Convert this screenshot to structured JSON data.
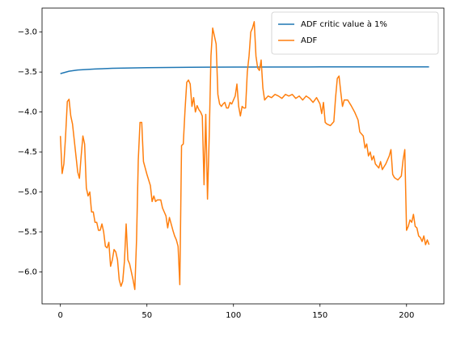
{
  "chart_data": {
    "type": "line",
    "xlim": [
      -10.6,
      221.6
    ],
    "ylim": [
      -6.4,
      -2.7
    ],
    "xticks": [
      0,
      50,
      100,
      150,
      200
    ],
    "yticks": [
      {
        "value": -3.0,
        "label": "−3.0"
      },
      {
        "value": -3.5,
        "label": "−3.5"
      },
      {
        "value": -4.0,
        "label": "−4.0"
      },
      {
        "value": -4.5,
        "label": "−4.5"
      },
      {
        "value": -5.0,
        "label": "−5.0"
      },
      {
        "value": -5.5,
        "label": "−5.5"
      },
      {
        "value": -6.0,
        "label": "−6.0"
      }
    ],
    "legend": "upper right",
    "series": [
      {
        "name": "ADF critic value à 1%",
        "color": "#1f77b4",
        "x": [
          0,
          5,
          10,
          20,
          30,
          50,
          75,
          100,
          150,
          213
        ],
        "values": [
          -3.52,
          -3.49,
          -3.475,
          -3.462,
          -3.453,
          -3.445,
          -3.44,
          -3.438,
          -3.436,
          -3.435
        ]
      },
      {
        "name": "ADF",
        "color": "#ff7f0e",
        "x": [
          0,
          1,
          2,
          3,
          4,
          5,
          6,
          7,
          8,
          9,
          10,
          11,
          12,
          13,
          14,
          15,
          16,
          17,
          18,
          19,
          20,
          21,
          22,
          23,
          24,
          25,
          26,
          27,
          28,
          29,
          30,
          31,
          32,
          33,
          34,
          35,
          36,
          37,
          38,
          39,
          40,
          41,
          42,
          43,
          44,
          45,
          46,
          47,
          48,
          49,
          50,
          51,
          52,
          53,
          54,
          55,
          56,
          57,
          58,
          59,
          60,
          61,
          62,
          63,
          64,
          65,
          66,
          67,
          68,
          69,
          70,
          71,
          72,
          73,
          74,
          75,
          76,
          77,
          78,
          79,
          80,
          81,
          82,
          83,
          84,
          85,
          86,
          87,
          88,
          89,
          90,
          91,
          92,
          93,
          94,
          95,
          96,
          97,
          98,
          99,
          100,
          101,
          102,
          103,
          104,
          105,
          106,
          107,
          108,
          109,
          110,
          111,
          112,
          113,
          114,
          115,
          116,
          117,
          118,
          120,
          122,
          124,
          126,
          128,
          130,
          132,
          134,
          136,
          138,
          140,
          142,
          144,
          146,
          148,
          150,
          151,
          152,
          153,
          154,
          156,
          158,
          159,
          160,
          161,
          162,
          163,
          164,
          166,
          168,
          170,
          172,
          173,
          175,
          176,
          177,
          178,
          179,
          180,
          181,
          182,
          184,
          185,
          186,
          188,
          190,
          191,
          192,
          193,
          195,
          197,
          198,
          199,
          200,
          201,
          202,
          203,
          204,
          205,
          206,
          207,
          208,
          209,
          210,
          211,
          212,
          213
        ],
        "values": [
          -4.3,
          -4.77,
          -4.65,
          -4.3,
          -3.87,
          -3.84,
          -4.05,
          -4.15,
          -4.35,
          -4.55,
          -4.75,
          -4.83,
          -4.55,
          -4.3,
          -4.4,
          -4.95,
          -5.05,
          -5.0,
          -5.25,
          -5.25,
          -5.38,
          -5.38,
          -5.48,
          -5.48,
          -5.4,
          -5.5,
          -5.68,
          -5.7,
          -5.63,
          -5.93,
          -5.85,
          -5.72,
          -5.75,
          -5.85,
          -6.1,
          -6.18,
          -6.12,
          -5.87,
          -5.4,
          -5.85,
          -5.9,
          -6.0,
          -6.1,
          -6.22,
          -5.6,
          -4.6,
          -4.13,
          -4.13,
          -4.62,
          -4.7,
          -4.78,
          -4.85,
          -4.92,
          -5.12,
          -5.05,
          -5.12,
          -5.1,
          -5.1,
          -5.1,
          -5.2,
          -5.25,
          -5.3,
          -5.45,
          -5.32,
          -5.4,
          -5.48,
          -5.55,
          -5.6,
          -5.68,
          -6.16,
          -4.42,
          -4.4,
          -3.98,
          -3.63,
          -3.6,
          -3.65,
          -3.93,
          -3.82,
          -4.0,
          -3.92,
          -3.97,
          -4.0,
          -4.05,
          -4.91,
          -4.03,
          -5.09,
          -4.3,
          -3.3,
          -2.95,
          -3.05,
          -3.15,
          -3.78,
          -3.9,
          -3.93,
          -3.9,
          -3.88,
          -3.95,
          -3.95,
          -3.88,
          -3.9,
          -3.85,
          -3.8,
          -3.65,
          -3.93,
          -4.05,
          -3.93,
          -3.95,
          -3.95,
          -3.5,
          -3.3,
          -3.0,
          -2.95,
          -2.87,
          -3.3,
          -3.45,
          -3.48,
          -3.35,
          -3.7,
          -3.85,
          -3.8,
          -3.82,
          -3.78,
          -3.8,
          -3.83,
          -3.78,
          -3.8,
          -3.78,
          -3.83,
          -3.8,
          -3.85,
          -3.8,
          -3.83,
          -3.88,
          -3.82,
          -3.9,
          -4.02,
          -3.88,
          -4.13,
          -4.15,
          -4.17,
          -4.12,
          -3.82,
          -3.58,
          -3.55,
          -3.75,
          -3.93,
          -3.85,
          -3.85,
          -3.92,
          -4.0,
          -4.1,
          -4.25,
          -4.3,
          -4.45,
          -4.4,
          -4.55,
          -4.5,
          -4.6,
          -4.55,
          -4.65,
          -4.7,
          -4.62,
          -4.72,
          -4.65,
          -4.55,
          -4.47,
          -4.78,
          -4.82,
          -4.85,
          -4.8,
          -4.6,
          -4.47,
          -5.48,
          -5.43,
          -5.35,
          -5.38,
          -5.28,
          -5.43,
          -5.45,
          -5.55,
          -5.57,
          -5.62,
          -5.55,
          -5.66,
          -5.6,
          -5.66
        ]
      }
    ]
  }
}
